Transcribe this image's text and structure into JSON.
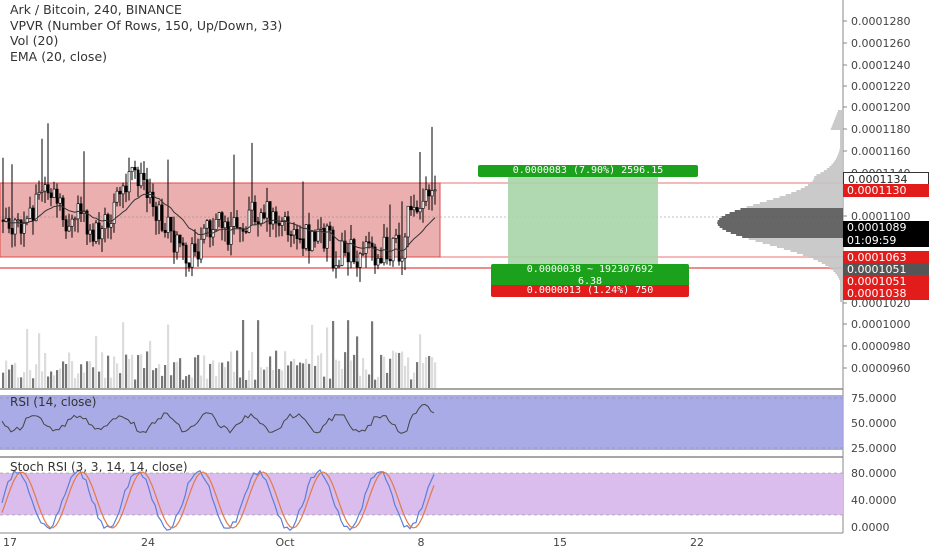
{
  "legend": {
    "symbol_line": "Ark / Bitcoin, 240, BINANCE",
    "vpvr": "VPVR (Number Of Rows, 150, Up/Down, 33)",
    "vol": "Vol (20)",
    "ema": "EMA (20, close)"
  },
  "rsi_title": "RSI (14, close)",
  "stoch_title": "Stoch RSI (3, 3, 14, 14, close)",
  "price_axis": {
    "ticks": [
      "0.0001280",
      "0.0001260",
      "0.0001240",
      "0.0001220",
      "0.0001200",
      "0.0001180",
      "0.0001160",
      "0.0001140",
      "0.0001100",
      "0.0001020",
      "0.0001000",
      "0.0000980",
      "0.0000960"
    ],
    "labels": [
      {
        "text": "0.0001134",
        "kind": "outline"
      },
      {
        "text": "0.0001130",
        "kind": "red"
      },
      {
        "text": "0.0001089",
        "kind": "black"
      },
      {
        "text": "01:09:59",
        "kind": "black"
      },
      {
        "text": "0.0001063",
        "kind": "red"
      },
      {
        "text": "0.0001051",
        "kind": "dark"
      },
      {
        "text": "0.0001051",
        "kind": "red"
      },
      {
        "text": "0.0001038",
        "kind": "red"
      }
    ]
  },
  "rsi_axis": [
    "75.0000",
    "50.0000",
    "25.0000"
  ],
  "stoch_axis": [
    "80.0000",
    "40.0000",
    "0.0000"
  ],
  "time_axis": [
    "17",
    "24",
    "Oct",
    "8",
    "15",
    "22"
  ],
  "position_tool": {
    "target_label": "0.0000083 (7.90%) 2596.15",
    "middle_label_1": "0.0000038 ~ 192307692",
    "middle_label_2": "6.38",
    "stop_label": "0.0000013 (1.24%) 750"
  },
  "colors": {
    "range_box": "#e8a1a1",
    "target_zone": "#a8d5a8",
    "rsi_band": "#a4a6e6",
    "stoch_band": "#d8b8ec",
    "up": "#ffffff",
    "down": "#000000"
  },
  "chart_data": {
    "type": "candlestick",
    "symbol": "Ark / Bitcoin",
    "interval": "240",
    "exchange": "BINANCE",
    "price_range": [
      9.5e-05,
      0.000129
    ],
    "range_box": {
      "top": 0.000113,
      "bottom": 0.0001063
    },
    "position": {
      "entry": 0.0001051,
      "target": 0.0001134,
      "stop": 0.0001038
    },
    "last_price": 0.0001089,
    "rsi_range": [
      25,
      75
    ],
    "stoch_range": [
      20,
      80
    ]
  }
}
